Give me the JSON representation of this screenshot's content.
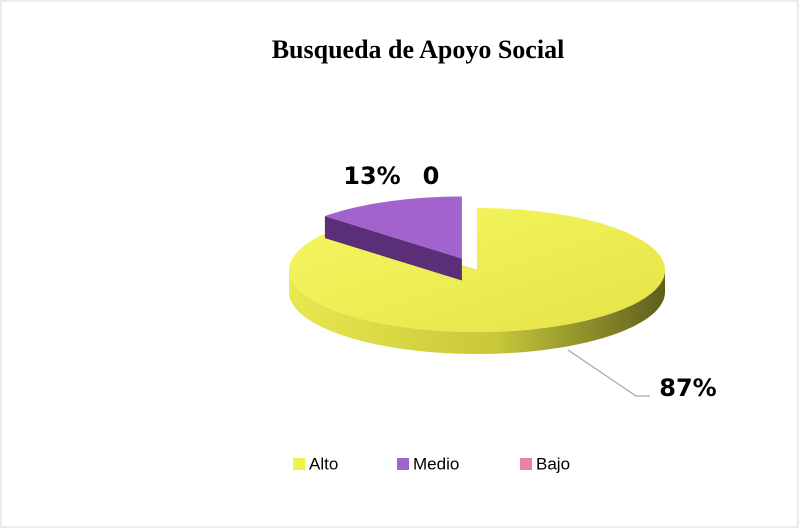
{
  "chart_data": {
    "type": "pie",
    "title": "Busqueda de Apoyo Social",
    "categories": [
      "Alto",
      "Medio",
      "Bajo"
    ],
    "values": [
      87,
      13,
      0
    ],
    "value_labels": [
      "87%",
      "13%",
      "0"
    ],
    "colors": [
      "#f2f24a",
      "#a263cc",
      "#f07fa0"
    ],
    "legend": "bottom"
  }
}
